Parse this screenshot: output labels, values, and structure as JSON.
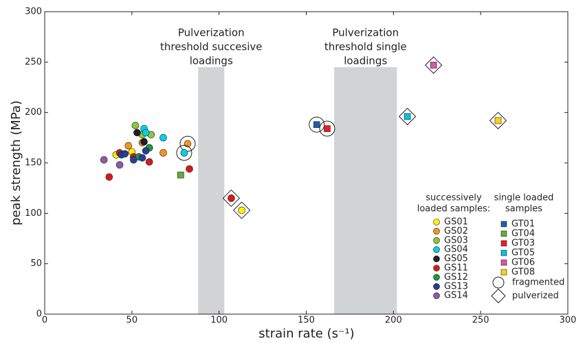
{
  "chart_data": {
    "type": "scatter",
    "x_label": "strain rate (s⁻¹)",
    "y_label": "peak strength (MPa)",
    "xlim": [
      0,
      300
    ],
    "ylim": [
      0,
      300
    ],
    "xticks": [
      0,
      50,
      100,
      150,
      200,
      250,
      300
    ],
    "yticks": [
      0,
      50,
      100,
      150,
      200,
      250,
      300
    ],
    "bands": [
      {
        "x": [
          88,
          103
        ],
        "top": 245,
        "color": "#d1d3d4",
        "label": [
          "Pulverization",
          "threshold succesive",
          "loadings"
        ]
      },
      {
        "x": [
          166,
          202
        ],
        "top": 245,
        "color": "#d1d3d4",
        "label": [
          "Pulverization",
          "threshold single",
          "loadings"
        ]
      }
    ],
    "groups": [
      {
        "title": [
          "successively",
          "loaded samples:"
        ],
        "marker": "circle",
        "series": [
          {
            "name": "GS01",
            "color": "#fff200",
            "x": [
              41,
              50,
              113
            ],
            "values": [
              158,
              161,
              103
            ],
            "outlines": [
              null,
              null,
              "diamond"
            ]
          },
          {
            "name": "GS02",
            "color": "#f7941d",
            "x": [
              48,
              68,
              82,
              56
            ],
            "values": [
              167,
              160,
              169,
              170
            ],
            "outlines": [
              null,
              null,
              "circle",
              null
            ]
          },
          {
            "name": "GS03",
            "color": "#8dc63f",
            "x": [
              52,
              56,
              61,
              60
            ],
            "values": [
              187,
              178,
              178,
              165
            ]
          },
          {
            "name": "GS04",
            "color": "#00d2e6",
            "x": [
              57,
              68,
              80,
              58
            ],
            "values": [
              184,
              175,
              160,
              180
            ],
            "outlines": [
              null,
              null,
              "circle",
              null
            ]
          },
          {
            "name": "GS05",
            "color": "#231f20",
            "x": [
              53,
              57
            ],
            "values": [
              180,
              171
            ]
          },
          {
            "name": "GS11",
            "color": "#d7191c",
            "x": [
              37,
              43,
              60,
              83,
              107,
              51
            ],
            "values": [
              136,
              160,
              151,
              144,
              115,
              156
            ],
            "outlines": [
              null,
              null,
              null,
              null,
              "diamond",
              null
            ]
          },
          {
            "name": "GS12",
            "color": "#1a9c3c",
            "x": [
              60,
              54
            ],
            "values": [
              165,
              156
            ]
          },
          {
            "name": "GS13",
            "color": "#21409a",
            "x": [
              44,
              51,
              56,
              58,
              46
            ],
            "values": [
              158,
              153,
              155,
              162,
              159
            ]
          },
          {
            "name": "GS14",
            "color": "#8e5ba6",
            "x": [
              34,
              43
            ],
            "values": [
              153,
              148
            ]
          }
        ]
      },
      {
        "title": [
          "single loaded",
          "samples"
        ],
        "marker": "square",
        "series": [
          {
            "name": "GT01",
            "color": "#1c5fa8",
            "x": [
              156
            ],
            "values": [
              188
            ],
            "outlines": [
              "circle"
            ]
          },
          {
            "name": "GT04",
            "color": "#5eb130",
            "x": [
              78
            ],
            "values": [
              138
            ]
          },
          {
            "name": "GT03",
            "color": "#ed1c24",
            "x": [
              162
            ],
            "values": [
              184
            ],
            "outlines": [
              "circle"
            ]
          },
          {
            "name": "GT05",
            "color": "#00c4dc",
            "x": [
              208
            ],
            "values": [
              196
            ],
            "outlines": [
              "diamond"
            ]
          },
          {
            "name": "GT06",
            "color": "#d957a6",
            "x": [
              223
            ],
            "values": [
              247
            ],
            "outlines": [
              "diamond"
            ]
          },
          {
            "name": "GT08",
            "color": "#ffd400",
            "x": [
              260
            ],
            "values": [
              192
            ],
            "outlines": [
              "diamond"
            ]
          }
        ]
      }
    ],
    "outline_legend": [
      {
        "shape": "circle",
        "label": "fragmented"
      },
      {
        "shape": "diamond",
        "label": "pulverized"
      }
    ]
  }
}
